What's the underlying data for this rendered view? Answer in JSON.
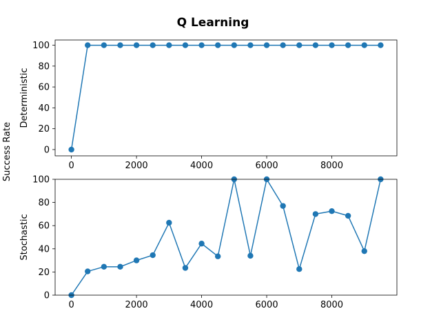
{
  "figure": {
    "title": "Q Learning",
    "shared_ylabel": "Success Rate"
  },
  "chart_data": [
    {
      "type": "line",
      "ylabel": "Deterministic",
      "xlabel": "",
      "xticks": [
        0,
        2000,
        4000,
        6000,
        8000
      ],
      "yticks": [
        0,
        20,
        40,
        60,
        80,
        100
      ],
      "xlim": [
        -500,
        10000
      ],
      "ylim": [
        -6,
        105
      ],
      "color": "#1f77b4",
      "marker": "circle",
      "x": [
        0,
        500,
        1000,
        1500,
        2000,
        2500,
        3000,
        3500,
        4000,
        4500,
        5000,
        5500,
        6000,
        6500,
        7000,
        7500,
        8000,
        8500,
        9000,
        9500
      ],
      "y": [
        0,
        100,
        100,
        100,
        100,
        100,
        100,
        100,
        100,
        100,
        100,
        100,
        100,
        100,
        100,
        100,
        100,
        100,
        100,
        100
      ]
    },
    {
      "type": "line",
      "ylabel": "Stochastic",
      "xlabel": "",
      "xticks": [
        0,
        2000,
        4000,
        6000,
        8000
      ],
      "yticks": [
        0,
        20,
        40,
        60,
        80,
        100
      ],
      "xlim": [
        -500,
        10000
      ],
      "ylim": [
        0,
        100
      ],
      "color": "#1f77b4",
      "marker": "circle",
      "x": [
        0,
        500,
        1000,
        1500,
        2000,
        2500,
        3000,
        3500,
        4000,
        4500,
        5000,
        5500,
        6000,
        6500,
        7000,
        7500,
        8000,
        8500,
        9000,
        9500
      ],
      "y": [
        0,
        20.5,
        24.5,
        24.5,
        30,
        34.5,
        62.5,
        23.5,
        44.5,
        33.5,
        100,
        34,
        100,
        77,
        22.5,
        70,
        72.5,
        68.5,
        38,
        100
      ]
    }
  ]
}
